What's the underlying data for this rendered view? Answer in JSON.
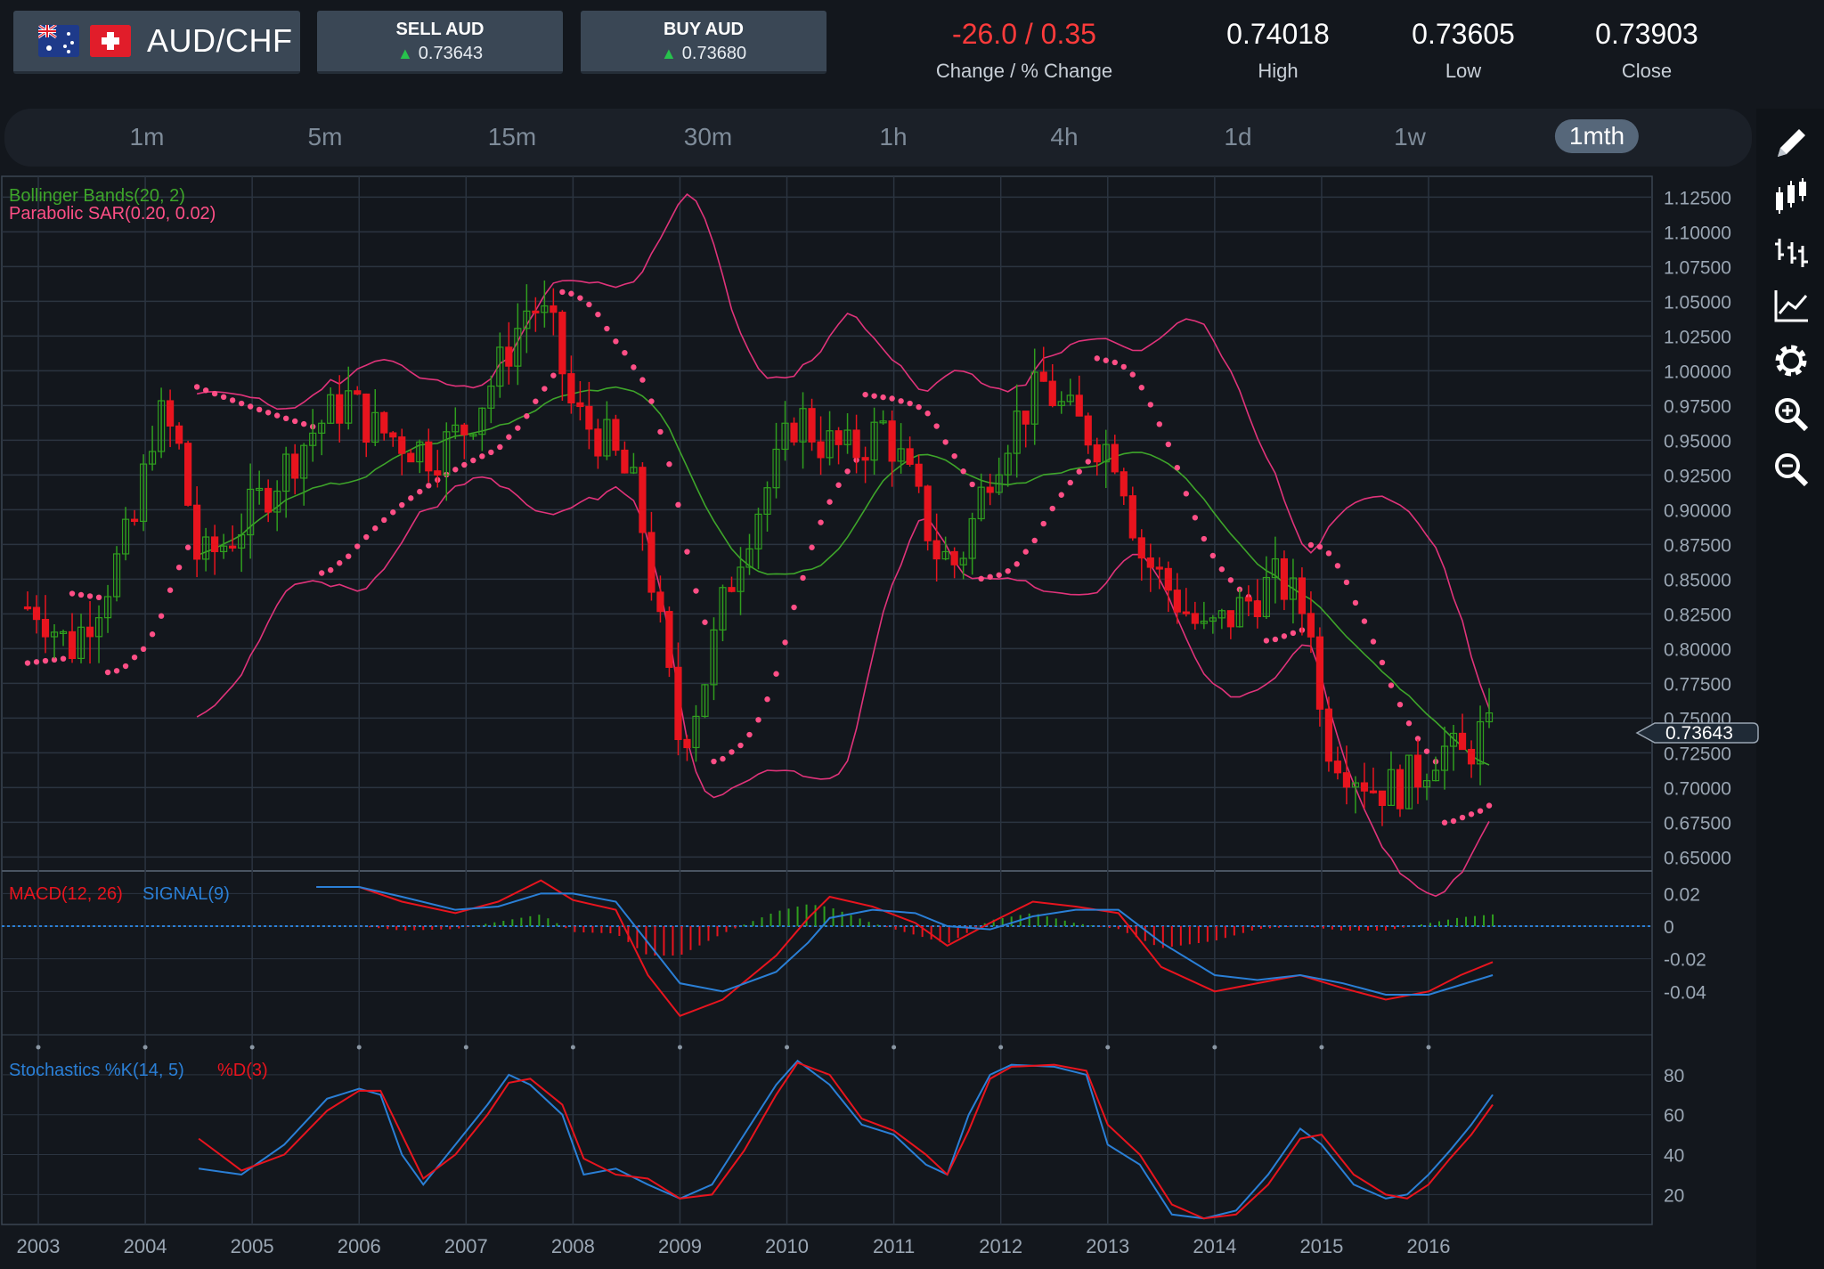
{
  "header": {
    "pair": "AUD/CHF",
    "sell_label": "SELL AUD",
    "sell_price": "0.73643",
    "buy_label": "BUY AUD",
    "buy_price": "0.73680",
    "change": "-26.0 / 0.35",
    "change_label": "Change / % Change",
    "high": "0.74018",
    "high_label": "High",
    "low": "0.73605",
    "low_label": "Low",
    "close": "0.73903",
    "close_label": "Close"
  },
  "timeframes": [
    "1m",
    "5m",
    "15m",
    "30m",
    "1h",
    "4h",
    "1d",
    "1w",
    "1mth"
  ],
  "active_timeframe": "1mth",
  "tools": [
    "pencil-icon",
    "candlestick-icon",
    "bar-chart-icon",
    "line-chart-icon",
    "gear-icon",
    "zoom-in-icon",
    "zoom-out-icon"
  ],
  "colors": {
    "up": "#2f9e1e",
    "down": "#e8141e",
    "bb_mid": "#3ea52a",
    "bb_band": "#e0337a",
    "sar": "#ff4f86",
    "macd": "#e8141e",
    "signal": "#2a7fd6",
    "grid": "#2b3440",
    "bg": "#13171d"
  },
  "chart_data": [
    {
      "type": "candlestick",
      "legend": [
        "Bollinger Bands(20, 2)",
        "Parabolic SAR(0.20, 0.02)"
      ],
      "current_price_label": "0.73643",
      "y_ticks": [
        "1.12500",
        "1.10000",
        "1.07500",
        "1.05000",
        "1.02500",
        "1.00000",
        "0.97500",
        "0.95000",
        "0.92500",
        "0.90000",
        "0.87500",
        "0.85000",
        "0.82500",
        "0.80000",
        "0.77500",
        "0.75000",
        "0.72500",
        "0.70000",
        "0.67500",
        "0.65000"
      ],
      "ylim": [
        0.64,
        1.14
      ],
      "x_ticks": [
        "2003",
        "2004",
        "2005",
        "2006",
        "2007",
        "2008",
        "2009",
        "2010",
        "2011",
        "2012",
        "2013",
        "2014",
        "2015",
        "2016"
      ],
      "close_series": [
        [
          2003.0,
          0.83
        ],
        [
          2003.3,
          0.8
        ],
        [
          2003.6,
          0.84
        ],
        [
          2003.9,
          0.89
        ],
        [
          2004.1,
          0.97
        ],
        [
          2004.3,
          0.95
        ],
        [
          2004.5,
          0.86
        ],
        [
          2004.8,
          0.88
        ],
        [
          2005.0,
          0.9
        ],
        [
          2005.3,
          0.93
        ],
        [
          2005.6,
          0.96
        ],
        [
          2005.9,
          0.98
        ],
        [
          2006.1,
          0.96
        ],
        [
          2006.4,
          0.95
        ],
        [
          2006.7,
          0.94
        ],
        [
          2007.0,
          0.96
        ],
        [
          2007.3,
          1.0
        ],
        [
          2007.6,
          1.05
        ],
        [
          2007.8,
          1.03
        ],
        [
          2008.0,
          0.97
        ],
        [
          2008.3,
          0.95
        ],
        [
          2008.6,
          0.91
        ],
        [
          2008.8,
          0.82
        ],
        [
          2009.0,
          0.73
        ],
        [
          2009.2,
          0.77
        ],
        [
          2009.4,
          0.83
        ],
        [
          2009.6,
          0.88
        ],
        [
          2009.9,
          0.93
        ],
        [
          2010.1,
          0.97
        ],
        [
          2010.3,
          0.95
        ],
        [
          2010.6,
          0.94
        ],
        [
          2010.9,
          0.96
        ],
        [
          2011.1,
          0.93
        ],
        [
          2011.4,
          0.87
        ],
        [
          2011.6,
          0.86
        ],
        [
          2011.9,
          0.93
        ],
        [
          2012.1,
          0.96
        ],
        [
          2012.4,
          0.99
        ],
        [
          2012.6,
          0.97
        ],
        [
          2012.9,
          0.95
        ],
        [
          2013.1,
          0.94
        ],
        [
          2013.3,
          0.87
        ],
        [
          2013.6,
          0.84
        ],
        [
          2013.9,
          0.81
        ],
        [
          2014.1,
          0.82
        ],
        [
          2014.4,
          0.84
        ],
        [
          2014.6,
          0.85
        ],
        [
          2014.9,
          0.82
        ],
        [
          2015.0,
          0.74
        ],
        [
          2015.2,
          0.72
        ],
        [
          2015.5,
          0.7
        ],
        [
          2015.7,
          0.7
        ],
        [
          2015.9,
          0.71
        ],
        [
          2016.1,
          0.73
        ],
        [
          2016.3,
          0.72
        ],
        [
          2016.5,
          0.74
        ],
        [
          2016.6,
          0.736
        ]
      ]
    },
    {
      "type": "line",
      "legend": [
        "MACD(12, 26)",
        "SIGNAL(9)"
      ],
      "y_ticks": [
        "0.02",
        "0",
        "-0.02",
        "-0.04"
      ],
      "ylim": [
        -0.06,
        0.03
      ],
      "macd": [
        [
          2005.6,
          0.024
        ],
        [
          2006.0,
          0.024
        ],
        [
          2006.4,
          0.015
        ],
        [
          2006.9,
          0.008
        ],
        [
          2007.3,
          0.015
        ],
        [
          2007.7,
          0.028
        ],
        [
          2008.0,
          0.016
        ],
        [
          2008.4,
          0.01
        ],
        [
          2008.7,
          -0.03
        ],
        [
          2009.0,
          -0.055
        ],
        [
          2009.4,
          -0.045
        ],
        [
          2009.9,
          -0.018
        ],
        [
          2010.2,
          0.005
        ],
        [
          2010.4,
          0.018
        ],
        [
          2010.8,
          0.012
        ],
        [
          2011.2,
          0.002
        ],
        [
          2011.5,
          -0.012
        ],
        [
          2011.9,
          0.002
        ],
        [
          2012.3,
          0.015
        ],
        [
          2012.7,
          0.012
        ],
        [
          2013.1,
          0.008
        ],
        [
          2013.5,
          -0.025
        ],
        [
          2014.0,
          -0.04
        ],
        [
          2014.4,
          -0.035
        ],
        [
          2014.8,
          -0.03
        ],
        [
          2015.2,
          -0.038
        ],
        [
          2015.6,
          -0.045
        ],
        [
          2016.0,
          -0.04
        ],
        [
          2016.3,
          -0.03
        ],
        [
          2016.6,
          -0.022
        ]
      ],
      "signal": [
        [
          2005.6,
          0.024
        ],
        [
          2006.0,
          0.024
        ],
        [
          2006.4,
          0.018
        ],
        [
          2006.9,
          0.01
        ],
        [
          2007.3,
          0.012
        ],
        [
          2007.7,
          0.02
        ],
        [
          2008.0,
          0.02
        ],
        [
          2008.4,
          0.015
        ],
        [
          2008.7,
          -0.01
        ],
        [
          2009.0,
          -0.035
        ],
        [
          2009.4,
          -0.04
        ],
        [
          2009.9,
          -0.028
        ],
        [
          2010.2,
          -0.01
        ],
        [
          2010.4,
          0.005
        ],
        [
          2010.8,
          0.01
        ],
        [
          2011.2,
          0.008
        ],
        [
          2011.5,
          0.0
        ],
        [
          2011.9,
          -0.002
        ],
        [
          2012.3,
          0.006
        ],
        [
          2012.7,
          0.01
        ],
        [
          2013.1,
          0.01
        ],
        [
          2013.5,
          -0.01
        ],
        [
          2014.0,
          -0.03
        ],
        [
          2014.4,
          -0.033
        ],
        [
          2014.8,
          -0.03
        ],
        [
          2015.2,
          -0.035
        ],
        [
          2015.6,
          -0.042
        ],
        [
          2016.0,
          -0.042
        ],
        [
          2016.3,
          -0.036
        ],
        [
          2016.6,
          -0.03
        ]
      ]
    },
    {
      "type": "line",
      "legend": [
        "Stochastics %K(14, 5)",
        "%D(3)"
      ],
      "y_ticks": [
        "80",
        "60",
        "40",
        "20"
      ],
      "ylim": [
        5,
        92
      ],
      "k": [
        [
          2004.5,
          33
        ],
        [
          2004.9,
          30
        ],
        [
          2005.3,
          45
        ],
        [
          2005.7,
          68
        ],
        [
          2006.0,
          73
        ],
        [
          2006.2,
          70
        ],
        [
          2006.4,
          40
        ],
        [
          2006.6,
          25
        ],
        [
          2006.9,
          45
        ],
        [
          2007.2,
          65
        ],
        [
          2007.4,
          80
        ],
        [
          2007.6,
          75
        ],
        [
          2007.9,
          60
        ],
        [
          2008.1,
          30
        ],
        [
          2008.4,
          33
        ],
        [
          2008.7,
          25
        ],
        [
          2009.0,
          18
        ],
        [
          2009.3,
          25
        ],
        [
          2009.6,
          50
        ],
        [
          2009.9,
          75
        ],
        [
          2010.1,
          87
        ],
        [
          2010.4,
          75
        ],
        [
          2010.7,
          55
        ],
        [
          2011.0,
          50
        ],
        [
          2011.3,
          35
        ],
        [
          2011.5,
          30
        ],
        [
          2011.7,
          60
        ],
        [
          2011.9,
          80
        ],
        [
          2012.1,
          85
        ],
        [
          2012.5,
          84
        ],
        [
          2012.8,
          80
        ],
        [
          2013.0,
          45
        ],
        [
          2013.3,
          35
        ],
        [
          2013.6,
          10
        ],
        [
          2013.9,
          8
        ],
        [
          2014.2,
          12
        ],
        [
          2014.5,
          30
        ],
        [
          2014.8,
          53
        ],
        [
          2015.0,
          45
        ],
        [
          2015.3,
          25
        ],
        [
          2015.6,
          18
        ],
        [
          2015.8,
          20
        ],
        [
          2016.0,
          30
        ],
        [
          2016.2,
          42
        ],
        [
          2016.4,
          55
        ],
        [
          2016.6,
          70
        ]
      ],
      "d": [
        [
          2004.5,
          48
        ],
        [
          2004.9,
          32
        ],
        [
          2005.3,
          40
        ],
        [
          2005.7,
          62
        ],
        [
          2006.0,
          72
        ],
        [
          2006.2,
          72
        ],
        [
          2006.4,
          50
        ],
        [
          2006.6,
          28
        ],
        [
          2006.9,
          40
        ],
        [
          2007.2,
          60
        ],
        [
          2007.4,
          76
        ],
        [
          2007.6,
          78
        ],
        [
          2007.9,
          65
        ],
        [
          2008.1,
          38
        ],
        [
          2008.4,
          30
        ],
        [
          2008.7,
          28
        ],
        [
          2009.0,
          18
        ],
        [
          2009.3,
          20
        ],
        [
          2009.6,
          42
        ],
        [
          2009.9,
          70
        ],
        [
          2010.1,
          86
        ],
        [
          2010.4,
          80
        ],
        [
          2010.7,
          58
        ],
        [
          2011.0,
          52
        ],
        [
          2011.3,
          40
        ],
        [
          2011.5,
          30
        ],
        [
          2011.7,
          52
        ],
        [
          2011.9,
          78
        ],
        [
          2012.1,
          84
        ],
        [
          2012.5,
          85
        ],
        [
          2012.8,
          82
        ],
        [
          2013.0,
          55
        ],
        [
          2013.3,
          40
        ],
        [
          2013.6,
          15
        ],
        [
          2013.9,
          8
        ],
        [
          2014.2,
          10
        ],
        [
          2014.5,
          25
        ],
        [
          2014.8,
          48
        ],
        [
          2015.0,
          50
        ],
        [
          2015.3,
          30
        ],
        [
          2015.6,
          20
        ],
        [
          2015.8,
          18
        ],
        [
          2016.0,
          25
        ],
        [
          2016.2,
          38
        ],
        [
          2016.4,
          50
        ],
        [
          2016.6,
          65
        ]
      ]
    }
  ]
}
